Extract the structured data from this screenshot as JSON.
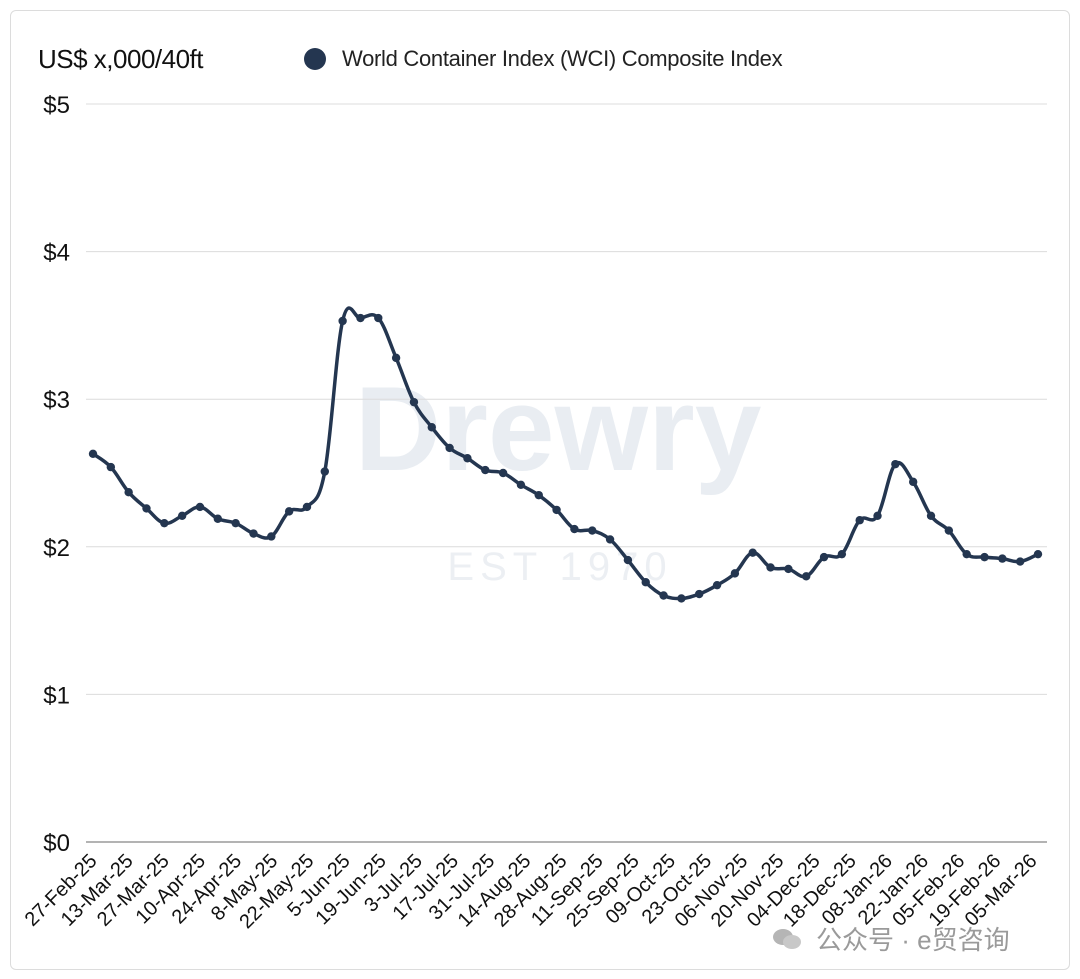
{
  "chart_data": {
    "type": "line",
    "ylabel": "US$ x,000/40ft",
    "series": [
      {
        "name": "World Container Index (WCI) Composite Index",
        "color": "#243650",
        "values": [
          2.63,
          2.54,
          2.37,
          2.26,
          2.16,
          2.21,
          2.27,
          2.19,
          2.16,
          2.09,
          2.07,
          2.24,
          2.27,
          2.51,
          3.53,
          3.55,
          3.55,
          3.28,
          2.98,
          2.81,
          2.67,
          2.6,
          2.52,
          2.5,
          2.42,
          2.35,
          2.25,
          2.12,
          2.11,
          2.05,
          1.91,
          1.76,
          1.67,
          1.65,
          1.68,
          1.74,
          1.82,
          1.96,
          1.86,
          1.85,
          1.8,
          1.93,
          1.95,
          2.18,
          2.21,
          2.56,
          2.44,
          2.21,
          2.11,
          1.95,
          1.93,
          1.92,
          1.9,
          1.95
        ]
      }
    ],
    "x_tick_labels": [
      "27-Feb-25",
      "13-Mar-25",
      "27-Mar-25",
      "10-Apr-25",
      "24-Apr-25",
      "8-May-25",
      "22-May-25",
      "5-Jun-25",
      "19-Jun-25",
      "3-Jul-25",
      "17-Jul-25",
      "31-Jul-25",
      "14-Aug-25",
      "28-Aug-25",
      "11-Sep-25",
      "25-Sep-25",
      "09-Oct-25",
      "23-Oct-25",
      "06-Nov-25",
      "20-Nov-25",
      "04-Dec-25",
      "18-Dec-25",
      "08-Jan-26",
      "22-Jan-26",
      "05-Feb-26",
      "19-Feb-26",
      "05-Mar-26"
    ],
    "y_ticks": [
      {
        "value": 0,
        "label": "$0"
      },
      {
        "value": 1,
        "label": "$1"
      },
      {
        "value": 2,
        "label": "$2"
      },
      {
        "value": 3,
        "label": "$3"
      },
      {
        "value": 4,
        "label": "$4"
      },
      {
        "value": 5,
        "label": "$5"
      }
    ],
    "ylim": [
      0,
      5
    ],
    "grid": "horizontal",
    "legend": "top"
  },
  "watermark": {
    "main": "Drewry",
    "sub": "EST 1970"
  },
  "footer": {
    "source_text": "公众号 · e贸咨询"
  },
  "icons": {
    "source_icon": "wechat-icon"
  }
}
